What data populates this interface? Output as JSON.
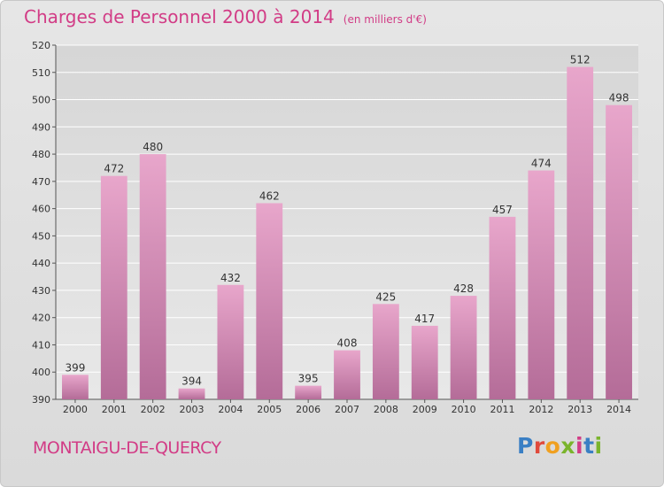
{
  "header": {
    "title": "Charges de Personnel 2000 à 2014",
    "unit": "(en milliers d'€)"
  },
  "footer": {
    "city": "MONTAIGU-DE-QUERCY",
    "logo": "Proxiti",
    "logo_colors": [
      "#3a7fc4",
      "#e04a3c",
      "#f0a020",
      "#7ab42c",
      "#d23c86",
      "#3a7fc4",
      "#7ab42c"
    ]
  },
  "colors": {
    "accent": "#d23c86",
    "bar_top": "#e8a6cb",
    "bar_bottom": "#b46c98"
  },
  "chart_data": {
    "type": "bar",
    "title": "Charges de Personnel 2000 à 2014",
    "subtitle": "(en milliers d'€)",
    "categories": [
      "2000",
      "2001",
      "2002",
      "2003",
      "2004",
      "2005",
      "2006",
      "2007",
      "2008",
      "2009",
      "2010",
      "2011",
      "2012",
      "2013",
      "2014"
    ],
    "values": [
      399,
      472,
      480,
      394,
      432,
      462,
      395,
      408,
      425,
      417,
      428,
      457,
      474,
      512,
      498
    ],
    "ylim": [
      390,
      520
    ],
    "yticks": [
      390,
      400,
      410,
      420,
      430,
      440,
      450,
      460,
      470,
      480,
      490,
      500,
      510,
      520
    ],
    "grid": true,
    "xlabel": "",
    "ylabel": ""
  }
}
